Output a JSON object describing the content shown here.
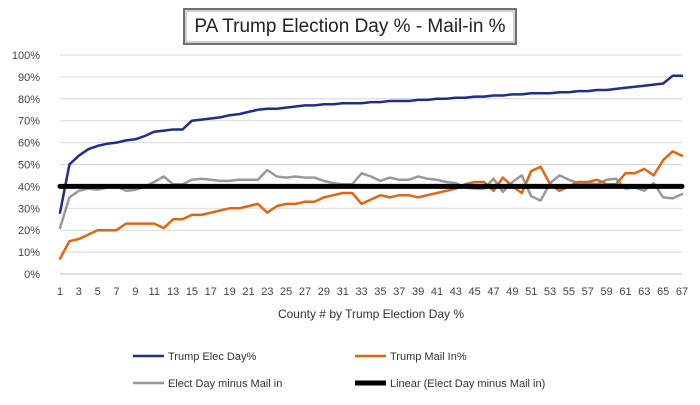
{
  "chart_data": {
    "type": "line",
    "title": "PA Trump Election Day % - Mail-in %",
    "xlabel": "County # by Trump Election Day %",
    "ylabel": "",
    "ylim": [
      0,
      100
    ],
    "yticks": [
      "0%",
      "10%",
      "20%",
      "30%",
      "40%",
      "50%",
      "60%",
      "70%",
      "80%",
      "90%",
      "100%"
    ],
    "xticks": [
      1,
      3,
      5,
      7,
      9,
      11,
      13,
      15,
      17,
      19,
      21,
      23,
      25,
      27,
      29,
      31,
      33,
      35,
      37,
      39,
      41,
      43,
      45,
      47,
      49,
      51,
      53,
      55,
      57,
      59,
      61,
      63,
      65,
      67
    ],
    "grid": true,
    "legend_position": "bottom",
    "x": [
      1,
      2,
      3,
      4,
      5,
      6,
      7,
      8,
      9,
      10,
      11,
      12,
      13,
      14,
      15,
      16,
      17,
      18,
      19,
      20,
      21,
      22,
      23,
      24,
      25,
      26,
      27,
      28,
      29,
      30,
      31,
      32,
      33,
      34,
      35,
      36,
      37,
      38,
      39,
      40,
      41,
      42,
      43,
      44,
      45,
      46,
      47,
      48,
      49,
      50,
      51,
      52,
      53,
      54,
      55,
      56,
      57,
      58,
      59,
      60,
      61,
      62,
      63,
      64,
      65,
      66,
      67
    ],
    "series": [
      {
        "name": "Trump Elec Day%",
        "color": "#1f2d8f",
        "width": 2.5,
        "values": [
          28,
          50,
          54,
          57,
          58.5,
          59.5,
          60,
          61,
          61.5,
          63,
          65,
          65.5,
          66,
          66,
          70,
          70.5,
          71,
          71.5,
          72.5,
          73,
          74,
          75,
          75.5,
          75.5,
          76,
          76.5,
          77,
          77,
          77.5,
          77.5,
          78,
          78,
          78,
          78.5,
          78.5,
          79,
          79,
          79,
          79.5,
          79.5,
          80,
          80,
          80.5,
          80.5,
          81,
          81,
          81.5,
          81.5,
          82,
          82,
          82.5,
          82.5,
          82.5,
          83,
          83,
          83.5,
          83.5,
          84,
          84,
          84.5,
          85,
          85.5,
          86,
          86.5,
          87,
          90.5,
          90.5
        ]
      },
      {
        "name": "Trump Mail In%",
        "color": "#e2650f",
        "width": 2.5,
        "values": [
          7,
          15,
          16,
          18,
          20,
          20,
          20,
          23,
          23,
          23,
          23,
          21,
          25,
          25,
          27,
          27,
          28,
          29,
          30,
          30,
          31,
          32,
          28,
          31,
          32,
          32,
          33,
          33,
          35,
          36,
          37,
          37,
          32,
          34,
          36,
          35,
          36,
          36,
          35,
          36,
          37,
          38,
          39,
          41,
          42,
          42,
          38,
          44,
          40,
          37,
          47,
          49,
          41,
          38,
          40,
          42,
          42,
          43,
          41,
          41,
          46,
          46,
          48,
          45,
          52,
          56,
          54
        ]
      },
      {
        "name": "Elect Day minus Mail in",
        "color": "#999999",
        "width": 2.5,
        "values": [
          21,
          35,
          38,
          39,
          38.5,
          39.5,
          40,
          38,
          38.5,
          40,
          42,
          44.5,
          41,
          41,
          43,
          43.5,
          43,
          42.5,
          42.5,
          43,
          43,
          43,
          47.5,
          44.5,
          44,
          44.5,
          44,
          44,
          42.5,
          41.5,
          41,
          41,
          46,
          44.5,
          42.5,
          44,
          43,
          43,
          44.5,
          43.5,
          43,
          42,
          41.5,
          39.5,
          39,
          39,
          43.5,
          37.5,
          42,
          45,
          35.5,
          33.5,
          41.5,
          45,
          43,
          41.5,
          41.5,
          41,
          43,
          43.5,
          39,
          39.5,
          38,
          41.5,
          35,
          34.5,
          36.5
        ]
      },
      {
        "name": "Linear (Elect Day minus Mail in)",
        "color": "#000000",
        "width": 5,
        "values": [
          40,
          40,
          40,
          40,
          40,
          40,
          40,
          40,
          40,
          40,
          40,
          40,
          40,
          40,
          40,
          40,
          40,
          40,
          40,
          40,
          40,
          40,
          40,
          40,
          40,
          40,
          40,
          40,
          40,
          40,
          40,
          40,
          40,
          40,
          40,
          40,
          40,
          40,
          40,
          40,
          40,
          40,
          40,
          40,
          40,
          40,
          40,
          40,
          40,
          40,
          40,
          40,
          40,
          40,
          40,
          40,
          40,
          40,
          40,
          40,
          40,
          40,
          40,
          40,
          40,
          40,
          40
        ]
      }
    ]
  }
}
